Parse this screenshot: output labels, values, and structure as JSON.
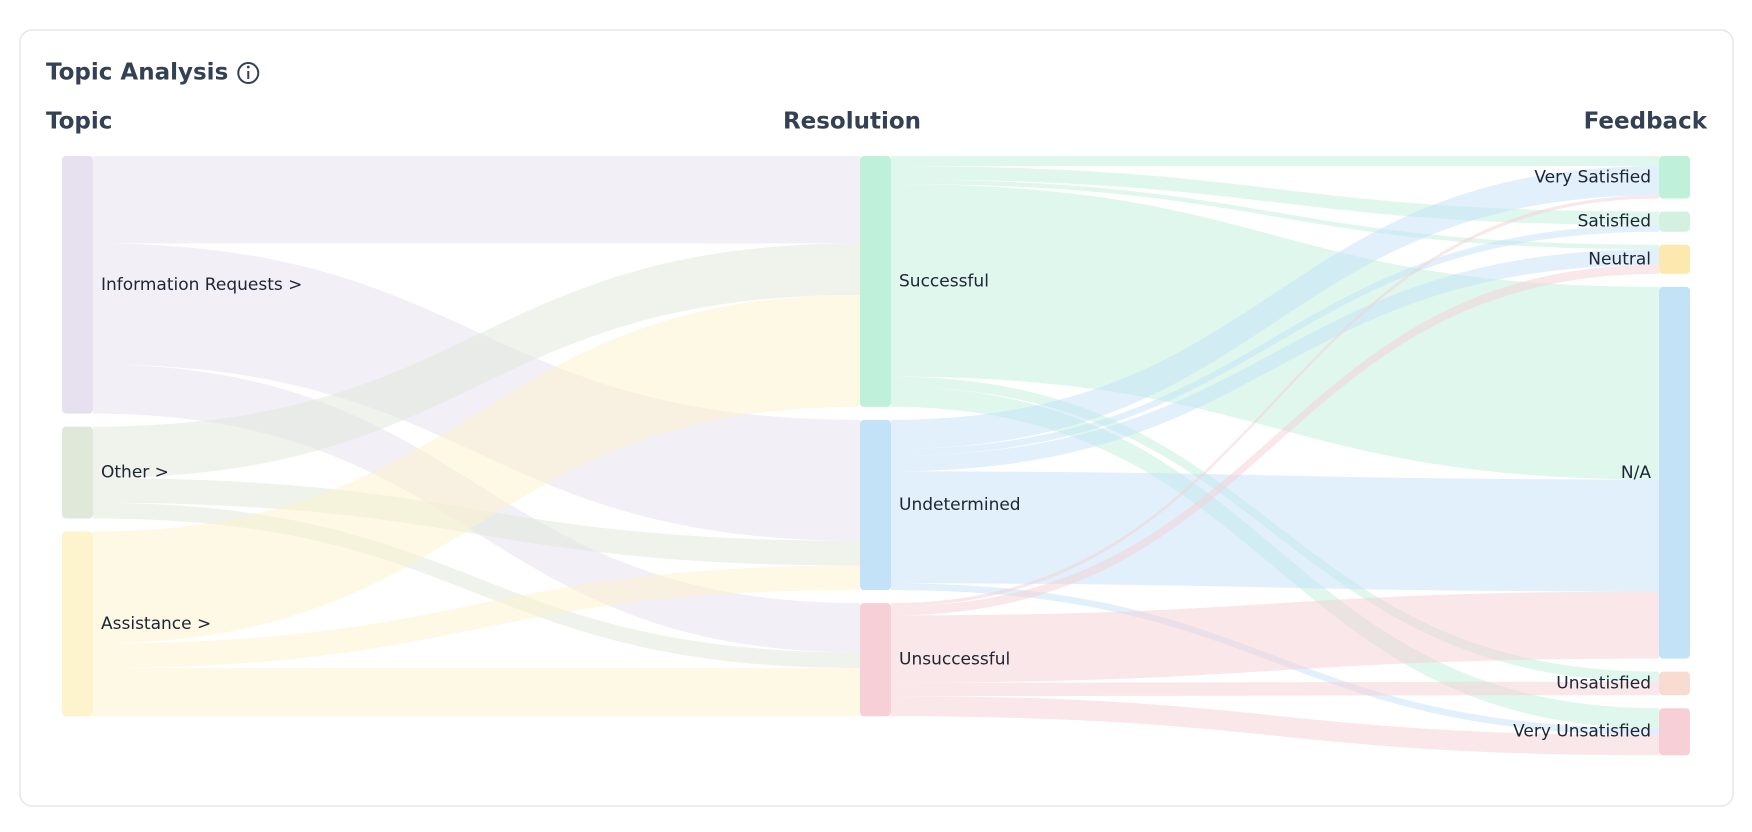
{
  "chart_data": {
    "type": "sankey",
    "title": "Topic Analysis",
    "columns": [
      "Topic",
      "Resolution",
      "Feedback"
    ],
    "nodes": [
      {
        "name": "Information Requests >",
        "column": 0,
        "color": "#e6e0ef"
      },
      {
        "name": "Other >",
        "column": 0,
        "color": "#e0e8da"
      },
      {
        "name": "Assistance >",
        "column": 0,
        "color": "#fdf3cc"
      },
      {
        "name": "Successful",
        "column": 1,
        "color": "#bff0da"
      },
      {
        "name": "Undetermined",
        "column": 1,
        "color": "#c3e2f8"
      },
      {
        "name": "Unsuccessful",
        "column": 1,
        "color": "#f6d0d6"
      },
      {
        "name": "Very Satisfied",
        "column": 2,
        "color": "#bff0da"
      },
      {
        "name": "Satisfied",
        "column": 2,
        "color": "#d3f0e0"
      },
      {
        "name": "Neutral",
        "column": 2,
        "color": "#fde9b0"
      },
      {
        "name": "N/A",
        "column": 2,
        "color": "#c3e2f8"
      },
      {
        "name": "Unsatisfied",
        "column": 2,
        "color": "#f8dcd2"
      },
      {
        "name": "Very Unsatisfied",
        "column": 2,
        "color": "#f6d0d6"
      }
    ],
    "links": [
      {
        "source": 0,
        "target": 3,
        "value": 78
      },
      {
        "source": 0,
        "target": 4,
        "value": 108
      },
      {
        "source": 0,
        "target": 5,
        "value": 44
      },
      {
        "source": 1,
        "target": 3,
        "value": 46
      },
      {
        "source": 1,
        "target": 4,
        "value": 22
      },
      {
        "source": 1,
        "target": 5,
        "value": 14
      },
      {
        "source": 2,
        "target": 3,
        "value": 100
      },
      {
        "source": 2,
        "target": 4,
        "value": 22
      },
      {
        "source": 2,
        "target": 5,
        "value": 43
      },
      {
        "source": 3,
        "target": 6,
        "value": 9
      },
      {
        "source": 3,
        "target": 7,
        "value": 12
      },
      {
        "source": 3,
        "target": 8,
        "value": 4
      },
      {
        "source": 3,
        "target": 9,
        "value": 172
      },
      {
        "source": 3,
        "target": 10,
        "value": 9
      },
      {
        "source": 3,
        "target": 11,
        "value": 18
      },
      {
        "source": 4,
        "target": 6,
        "value": 26
      },
      {
        "source": 4,
        "target": 7,
        "value": 6
      },
      {
        "source": 4,
        "target": 8,
        "value": 14
      },
      {
        "source": 4,
        "target": 9,
        "value": 100
      },
      {
        "source": 4,
        "target": 11,
        "value": 6
      },
      {
        "source": 5,
        "target": 6,
        "value": 3
      },
      {
        "source": 5,
        "target": 8,
        "value": 8
      },
      {
        "source": 5,
        "target": 9,
        "value": 60
      },
      {
        "source": 5,
        "target": 10,
        "value": 12
      },
      {
        "source": 5,
        "target": 11,
        "value": 18
      }
    ]
  }
}
